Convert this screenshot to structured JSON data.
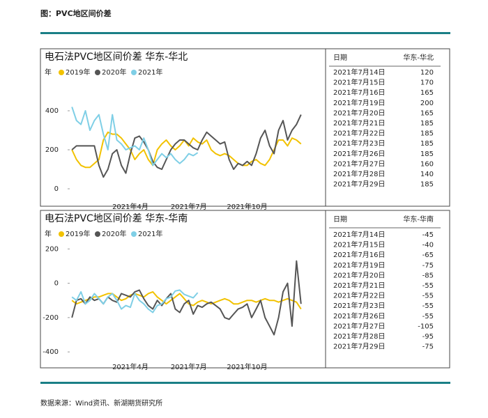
{
  "header": {
    "title": "图：PVC地区间价差"
  },
  "chart_data": [
    {
      "type": "line",
      "title": "电石法PVC地区间价差 华东-华北",
      "legend_title": "年",
      "categories": [
        null,
        null,
        null,
        null,
        null,
        null,
        null,
        null,
        null,
        null,
        null,
        null,
        null,
        "2021年4月",
        null,
        null,
        null,
        null,
        null,
        null,
        null,
        null,
        null,
        null,
        null,
        null,
        "2021年7月",
        null,
        null,
        null,
        null,
        null,
        null,
        null,
        null,
        null,
        null,
        null,
        null,
        "2021年10月",
        null,
        null,
        null,
        null,
        null,
        null,
        null,
        null,
        null,
        null,
        null,
        null
      ],
      "ylim": [
        -50,
        450
      ],
      "yticks": [
        0,
        200,
        400
      ],
      "series": [
        {
          "name": "2019年",
          "color": "#f2c200",
          "values": [
            200,
            150,
            120,
            110,
            110,
            130,
            150,
            250,
            290,
            280,
            280,
            260,
            230,
            200,
            150,
            180,
            200,
            150,
            120,
            200,
            230,
            250,
            220,
            200,
            220,
            250,
            220,
            260,
            240,
            230,
            250,
            200,
            180,
            170,
            180,
            170,
            150,
            130,
            120,
            120,
            140,
            150,
            130,
            120,
            150,
            200,
            250,
            250,
            220,
            260,
            250,
            230
          ]
        },
        {
          "name": "2020年",
          "color": "#555555",
          "values": [
            200,
            220,
            220,
            220,
            220,
            220,
            120,
            60,
            100,
            180,
            200,
            120,
            80,
            180,
            260,
            270,
            240,
            200,
            140,
            110,
            100,
            150,
            200,
            230,
            250,
            250,
            230,
            210,
            200,
            250,
            290,
            270,
            250,
            230,
            240,
            150,
            100,
            130,
            120,
            140,
            120,
            180,
            260,
            300,
            220,
            180,
            300,
            350,
            250,
            300,
            330,
            380
          ]
        },
        {
          "name": "2021年",
          "color": "#7fcfe6",
          "values": [
            420,
            350,
            330,
            400,
            300,
            350,
            380,
            280,
            200,
            380,
            250,
            230,
            200,
            210,
            220,
            200,
            260,
            200,
            120,
            150,
            180,
            160,
            180,
            150,
            130,
            150,
            180,
            170,
            185,
            null,
            null,
            null,
            null,
            null,
            null,
            null,
            null,
            null,
            null,
            null,
            null,
            null,
            null,
            null,
            null,
            null,
            null,
            null,
            null,
            null,
            null,
            null
          ]
        }
      ]
    },
    {
      "type": "line",
      "title": "电石法PVC地区间价差 华东-华南",
      "legend_title": "年",
      "categories": [
        null,
        null,
        null,
        null,
        null,
        null,
        null,
        null,
        null,
        null,
        null,
        null,
        null,
        "2021年4月",
        null,
        null,
        null,
        null,
        null,
        null,
        null,
        null,
        null,
        null,
        null,
        null,
        "2021年7月",
        null,
        null,
        null,
        null,
        null,
        null,
        null,
        null,
        null,
        null,
        null,
        null,
        "2021年10月",
        null,
        null,
        null,
        null,
        null,
        null,
        null,
        null,
        null,
        null,
        null,
        null
      ],
      "ylim": [
        -440,
        250
      ],
      "yticks": [
        -400,
        -200,
        0,
        200
      ],
      "series": [
        {
          "name": "2019年",
          "color": "#f2c200",
          "values": [
            -100,
            -120,
            -110,
            -100,
            -90,
            -80,
            -80,
            -70,
            -60,
            -60,
            -80,
            -100,
            -90,
            -70,
            -60,
            -70,
            -80,
            -60,
            -50,
            -80,
            -100,
            -120,
            -100,
            -80,
            -60,
            -90,
            -120,
            -130,
            -110,
            -100,
            -110,
            -120,
            -110,
            -100,
            -90,
            -100,
            -120,
            -120,
            -110,
            -100,
            -100,
            -110,
            -100,
            -90,
            -100,
            -100,
            -110,
            -100,
            -90,
            -100,
            -110,
            -150
          ]
        },
        {
          "name": "2020年",
          "color": "#555555",
          "values": [
            -200,
            -100,
            -90,
            -120,
            -80,
            -100,
            -90,
            -120,
            -80,
            -100,
            -110,
            -60,
            -70,
            -80,
            -50,
            -40,
            -90,
            -130,
            -150,
            -100,
            -130,
            -90,
            -60,
            -150,
            -170,
            -120,
            -100,
            -180,
            -130,
            -140,
            -120,
            -110,
            -130,
            -150,
            -200,
            -210,
            -180,
            -150,
            -140,
            -120,
            -200,
            -150,
            -100,
            -200,
            -250,
            -300,
            -200,
            -50,
            0,
            -250,
            130,
            -120
          ]
        },
        {
          "name": "2021年",
          "color": "#7fcfe6",
          "values": [
            -80,
            -100,
            -50,
            -120,
            -100,
            -60,
            -90,
            -120,
            -80,
            -60,
            -100,
            -150,
            -130,
            -140,
            -60,
            -100,
            -120,
            -150,
            -170,
            -130,
            -120,
            -90,
            -80,
            -45,
            -40,
            -65,
            -75,
            -85,
            -55,
            null,
            null,
            null,
            null,
            null,
            null,
            null,
            null,
            null,
            null,
            null,
            null,
            null,
            null,
            null,
            null,
            null,
            null,
            null,
            null,
            null,
            null,
            null
          ]
        }
      ]
    }
  ],
  "tables": [
    {
      "columns": [
        "日期",
        "华东-华北"
      ],
      "rows": [
        [
          "2021年7月14日",
          120
        ],
        [
          "2021年7月15日",
          170
        ],
        [
          "2021年7月16日",
          165
        ],
        [
          "2021年7月19日",
          200
        ],
        [
          "2021年7月20日",
          165
        ],
        [
          "2021年7月21日",
          185
        ],
        [
          "2021年7月22日",
          185
        ],
        [
          "2021年7月23日",
          185
        ],
        [
          "2021年7月26日",
          185
        ],
        [
          "2021年7月27日",
          160
        ],
        [
          "2021年7月28日",
          140
        ],
        [
          "2021年7月29日",
          185
        ]
      ]
    },
    {
      "columns": [
        "日期",
        "华东-华南"
      ],
      "rows": [
        [
          "2021年7月14日",
          -45
        ],
        [
          "2021年7月15日",
          -40
        ],
        [
          "2021年7月16日",
          -65
        ],
        [
          "2021年7月19日",
          -75
        ],
        [
          "2021年7月20日",
          -85
        ],
        [
          "2021年7月21日",
          -55
        ],
        [
          "2021年7月22日",
          -55
        ],
        [
          "2021年7月23日",
          -55
        ],
        [
          "2021年7月26日",
          -55
        ],
        [
          "2021年7月27日",
          -105
        ],
        [
          "2021年7月28日",
          -95
        ],
        [
          "2021年7月29日",
          -75
        ]
      ]
    }
  ],
  "source": "数据来源：Wind资讯、新湖期货研究所"
}
